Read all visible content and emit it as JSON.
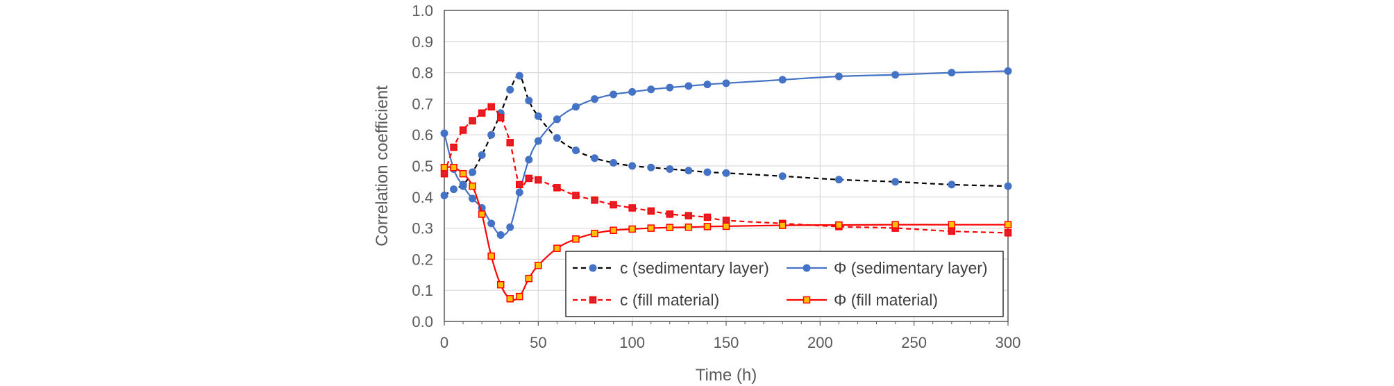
{
  "chart_data": {
    "type": "line",
    "title": "",
    "xlabel": "Time (h)",
    "ylabel": "Correlation coefficient",
    "xlim": [
      0,
      300
    ],
    "ylim": [
      0,
      1.0
    ],
    "x_ticks": [
      "0",
      "50",
      "100",
      "150",
      "200",
      "250",
      "300"
    ],
    "y_ticks": [
      "0.0",
      "0.1",
      "0.2",
      "0.3",
      "0.4",
      "0.5",
      "0.6",
      "0.7",
      "0.8",
      "0.9",
      "1.0"
    ],
    "grid": true,
    "legend_position": "bottom-right inside plot, 2 columns",
    "series": [
      {
        "name": "c (sedimentary layer)",
        "color": "#4472C4",
        "line_color": "#000000",
        "line_style": "dashed",
        "marker": "circle",
        "x": [
          0,
          5,
          10,
          15,
          20,
          25,
          30,
          35,
          40,
          45,
          50,
          60,
          70,
          80,
          90,
          100,
          110,
          120,
          130,
          140,
          150,
          180,
          210,
          240,
          270,
          300
        ],
        "y": [
          0.405,
          0.425,
          0.44,
          0.48,
          0.535,
          0.6,
          0.67,
          0.745,
          0.79,
          0.71,
          0.66,
          0.59,
          0.55,
          0.525,
          0.51,
          0.5,
          0.495,
          0.49,
          0.485,
          0.48,
          0.477,
          0.467,
          0.456,
          0.449,
          0.44,
          0.435
        ]
      },
      {
        "name": "Φ (sedimentary layer)",
        "color": "#4472C4",
        "line_color": "#4472C4",
        "line_style": "solid",
        "marker": "circle",
        "x": [
          0,
          5,
          10,
          15,
          20,
          25,
          30,
          35,
          40,
          45,
          50,
          60,
          70,
          80,
          90,
          100,
          110,
          120,
          130,
          140,
          150,
          180,
          210,
          240,
          270,
          300
        ],
        "y": [
          0.605,
          0.49,
          0.435,
          0.395,
          0.365,
          0.315,
          0.278,
          0.303,
          0.415,
          0.52,
          0.58,
          0.65,
          0.69,
          0.715,
          0.73,
          0.738,
          0.746,
          0.752,
          0.757,
          0.762,
          0.766,
          0.777,
          0.788,
          0.793,
          0.8,
          0.805
        ]
      },
      {
        "name": "c (fill material)",
        "color": "#E0202A",
        "line_color": "#FF0000",
        "line_style": "dashed",
        "marker": "square",
        "x": [
          0,
          5,
          10,
          15,
          20,
          25,
          30,
          35,
          40,
          45,
          50,
          60,
          70,
          80,
          90,
          100,
          110,
          120,
          130,
          140,
          150,
          180,
          210,
          240,
          270,
          300
        ],
        "y": [
          0.475,
          0.56,
          0.615,
          0.645,
          0.67,
          0.69,
          0.655,
          0.575,
          0.44,
          0.46,
          0.455,
          0.43,
          0.405,
          0.39,
          0.375,
          0.365,
          0.355,
          0.345,
          0.34,
          0.335,
          0.325,
          0.315,
          0.305,
          0.3,
          0.29,
          0.285
        ]
      },
      {
        "name": "Φ (fill material)",
        "color": "#FFC000",
        "line_color": "#FF0000",
        "line_style": "solid",
        "marker": "square",
        "x": [
          0,
          5,
          10,
          15,
          20,
          25,
          30,
          35,
          40,
          45,
          50,
          60,
          70,
          80,
          90,
          100,
          110,
          120,
          130,
          140,
          150,
          180,
          210,
          240,
          270,
          300
        ],
        "y": [
          0.495,
          0.495,
          0.475,
          0.435,
          0.345,
          0.21,
          0.118,
          0.073,
          0.08,
          0.138,
          0.18,
          0.235,
          0.265,
          0.283,
          0.293,
          0.297,
          0.3,
          0.302,
          0.303,
          0.305,
          0.306,
          0.309,
          0.31,
          0.311,
          0.311,
          0.311
        ]
      }
    ]
  }
}
